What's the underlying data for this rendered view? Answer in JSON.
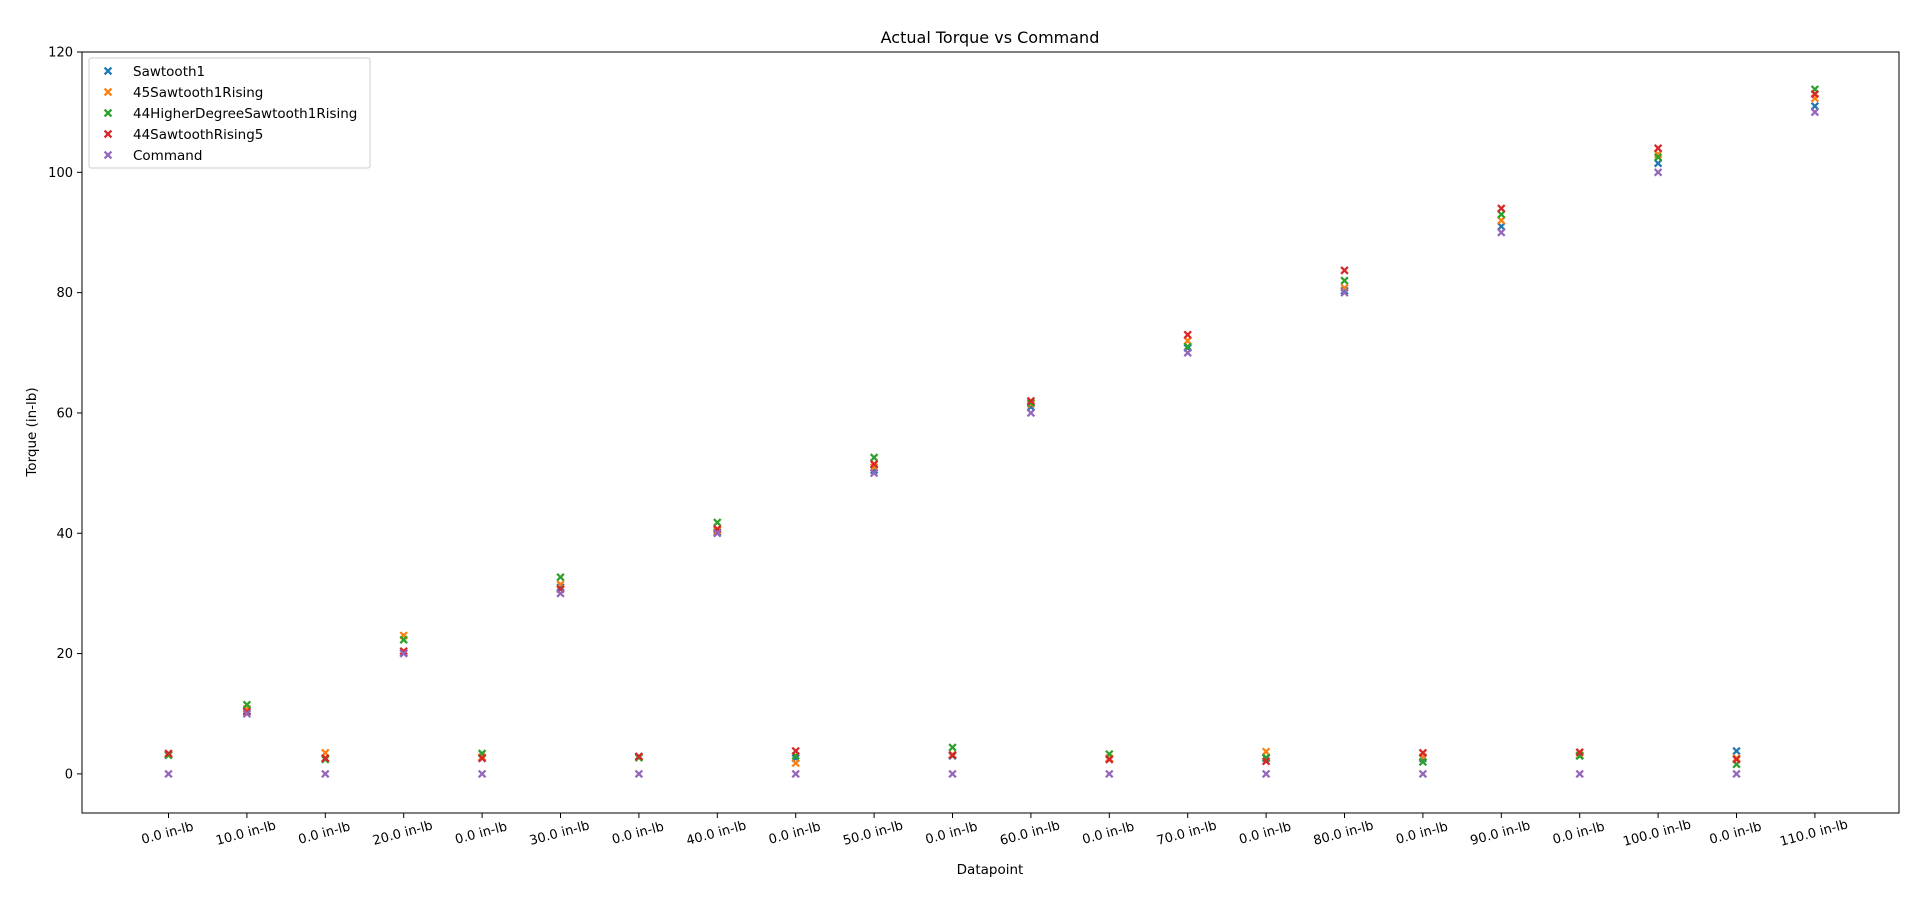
{
  "chart_data": {
    "type": "scatter",
    "title": "Actual Torque vs Command",
    "xlabel": "Datapoint",
    "ylabel": "Torque (in-lb)",
    "categories": [
      "0.0 in-lb",
      "10.0 in-lb",
      "0.0 in-lb",
      "20.0 in-lb",
      "0.0 in-lb",
      "30.0 in-lb",
      "0.0 in-lb",
      "40.0 in-lb",
      "0.0 in-lb",
      "50.0 in-lb",
      "0.0 in-lb",
      "60.0 in-lb",
      "0.0 in-lb",
      "70.0 in-lb",
      "0.0 in-lb",
      "80.0 in-lb",
      "0.0 in-lb",
      "90.0 in-lb",
      "0.0 in-lb",
      "100.0 in-lb",
      "0.0 in-lb",
      "110.0 in-lb"
    ],
    "ylim": [
      -6.5,
      120
    ],
    "yticks": [
      0,
      20,
      40,
      60,
      80,
      100,
      120
    ],
    "grid": false,
    "legend_position": "top-left",
    "marker": "x",
    "series": [
      {
        "name": "Sawtooth1",
        "color": "#1f77b4",
        "values": [
          3.2,
          10.5,
          2.6,
          20.1,
          2.6,
          31.0,
          2.9,
          40.2,
          2.6,
          50.5,
          3.0,
          61.0,
          2.4,
          70.8,
          2.6,
          80.3,
          2.6,
          91.0,
          3.0,
          101.5,
          3.8,
          111.0
        ]
      },
      {
        "name": "45Sawtooth1Rising",
        "color": "#ff7f0e",
        "values": [
          3.3,
          10.8,
          3.5,
          23.0,
          2.8,
          31.5,
          2.8,
          40.5,
          1.8,
          51.0,
          3.2,
          61.5,
          2.6,
          72.0,
          3.7,
          80.8,
          2.8,
          92.0,
          3.1,
          103.0,
          2.6,
          112.3
        ]
      },
      {
        "name": "44HigherDegreeSawtooth1Rising",
        "color": "#2ca02c",
        "values": [
          3.1,
          11.5,
          2.4,
          22.3,
          3.4,
          32.7,
          2.7,
          41.8,
          3.0,
          52.6,
          4.4,
          61.7,
          3.3,
          71.0,
          2.7,
          82.0,
          2.0,
          93.0,
          3.0,
          102.5,
          1.6,
          113.8
        ]
      },
      {
        "name": "44SawtoothRising5",
        "color": "#d62728",
        "values": [
          3.4,
          10.3,
          2.6,
          20.4,
          2.6,
          30.7,
          2.9,
          40.7,
          3.8,
          51.5,
          3.1,
          62.0,
          2.4,
          73.0,
          2.1,
          83.7,
          3.5,
          94.0,
          3.6,
          104.0,
          2.4,
          113.0
        ]
      },
      {
        "name": "Command",
        "color": "#9467bd",
        "values": [
          0,
          10,
          0,
          20,
          0,
          30,
          0,
          40,
          0,
          50,
          0,
          60,
          0,
          70,
          0,
          80,
          0,
          90,
          0,
          100,
          0,
          110
        ]
      }
    ]
  }
}
